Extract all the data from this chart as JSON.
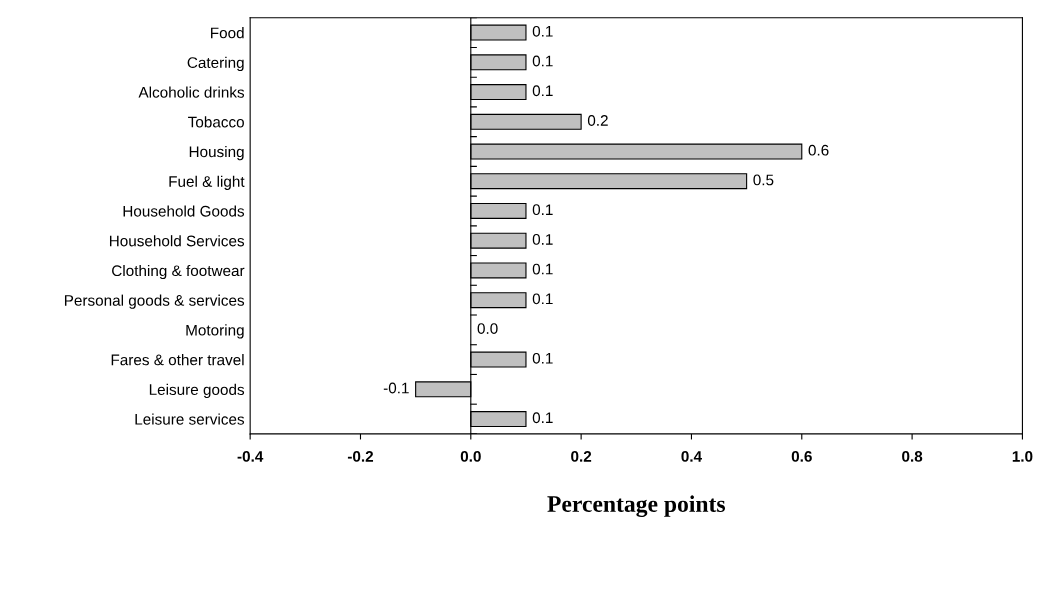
{
  "chart_data": {
    "type": "bar",
    "orientation": "horizontal",
    "xlabel": "Percentage points",
    "categories": [
      "Food",
      "Catering",
      "Alcoholic drinks",
      "Tobacco",
      "Housing",
      "Fuel & light",
      "Household Goods",
      "Household Services",
      "Clothing & footwear",
      "Personal goods & services",
      "Motoring",
      "Fares & other travel",
      "Leisure goods",
      "Leisure services"
    ],
    "values": [
      0.1,
      0.1,
      0.1,
      0.2,
      0.6,
      0.5,
      0.1,
      0.1,
      0.1,
      0.1,
      0.0,
      0.1,
      -0.1,
      0.1
    ],
    "value_labels": [
      "0.1",
      "0.1",
      "0.1",
      "0.2",
      "0.6",
      "0.5",
      "0.1",
      "0.1",
      "0.1",
      "0.1",
      "0.0",
      "0.1",
      "-0.1",
      "0.1"
    ],
    "color": "#c0c0c0",
    "xlim": [
      -0.4,
      1.0
    ],
    "xticks": [
      -0.4,
      -0.2,
      {
        "value": 0,
        "label": "0.0"
      },
      0.2,
      0.4,
      0.6,
      0.8,
      {
        "value": 1,
        "label": "1.0"
      }
    ]
  }
}
